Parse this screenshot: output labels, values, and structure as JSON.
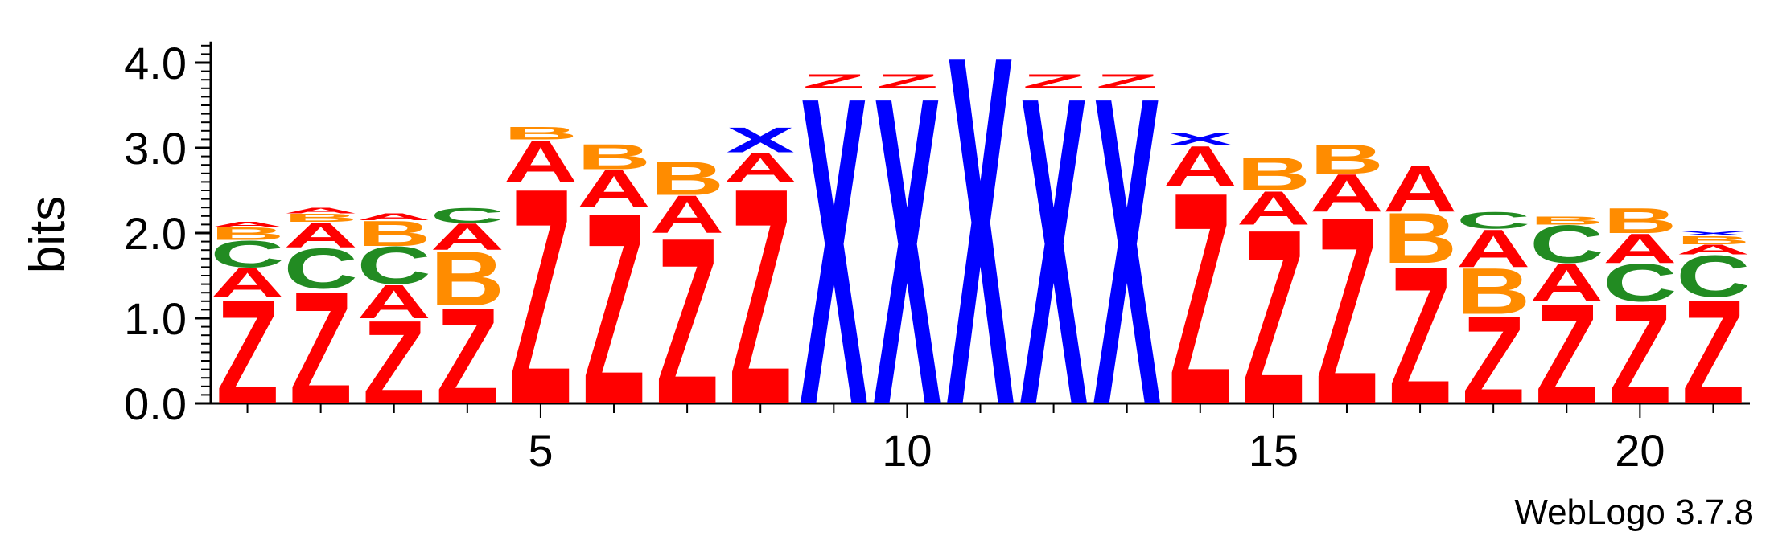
{
  "chart_data": {
    "type": "sequence-logo",
    "ylabel": "bits",
    "ylim": [
      0,
      4.2
    ],
    "yticks": [
      "0.0",
      "1.0",
      "2.0",
      "3.0",
      "4.0"
    ],
    "xticks": [
      5,
      10,
      15,
      20
    ],
    "footer": "WebLogo 3.7.8",
    "colors": {
      "Z": "#ff0000",
      "A": "#ff0000",
      "X": "#0000ff",
      "C": "#228b22",
      "B": "#ff8c00",
      "other": "#800080"
    },
    "positions": [
      {
        "pos": 1,
        "stack": [
          {
            "l": "Z",
            "h": 1.25
          },
          {
            "l": "A",
            "h": 0.35
          },
          {
            "l": "C",
            "h": 0.32
          },
          {
            "l": "B",
            "h": 0.15
          },
          {
            "l": "A",
            "h": 0.06
          }
        ]
      },
      {
        "pos": 2,
        "stack": [
          {
            "l": "Z",
            "h": 1.35
          },
          {
            "l": "C",
            "h": 0.48
          },
          {
            "l": "A",
            "h": 0.3
          },
          {
            "l": "B",
            "h": 0.1
          },
          {
            "l": "A",
            "h": 0.07
          }
        ]
      },
      {
        "pos": 3,
        "stack": [
          {
            "l": "Z",
            "h": 1.0
          },
          {
            "l": "A",
            "h": 0.4
          },
          {
            "l": "C",
            "h": 0.45
          },
          {
            "l": "B",
            "h": 0.3
          },
          {
            "l": "A",
            "h": 0.08
          }
        ]
      },
      {
        "pos": 4,
        "stack": [
          {
            "l": "Z",
            "h": 1.15
          },
          {
            "l": "B",
            "h": 0.65
          },
          {
            "l": "A",
            "h": 0.32
          },
          {
            "l": "C",
            "h": 0.18
          }
        ]
      },
      {
        "pos": 5,
        "stack": [
          {
            "l": "Z",
            "h": 2.6
          },
          {
            "l": "A",
            "h": 0.5
          },
          {
            "l": "B",
            "h": 0.15
          }
        ]
      },
      {
        "pos": 6,
        "stack": [
          {
            "l": "Z",
            "h": 2.3
          },
          {
            "l": "A",
            "h": 0.45
          },
          {
            "l": "B",
            "h": 0.3
          }
        ]
      },
      {
        "pos": 7,
        "stack": [
          {
            "l": "Z",
            "h": 2.0
          },
          {
            "l": "A",
            "h": 0.45
          },
          {
            "l": "B",
            "h": 0.4
          }
        ]
      },
      {
        "pos": 8,
        "stack": [
          {
            "l": "Z",
            "h": 2.6
          },
          {
            "l": "A",
            "h": 0.35
          },
          {
            "l": "X",
            "h": 0.3
          }
        ]
      },
      {
        "pos": 9,
        "stack": [
          {
            "l": "X",
            "h": 3.7
          },
          {
            "l": "Z",
            "h": 0.17
          }
        ]
      },
      {
        "pos": 10,
        "stack": [
          {
            "l": "X",
            "h": 3.7
          },
          {
            "l": "Z",
            "h": 0.17
          }
        ]
      },
      {
        "pos": 11,
        "stack": [
          {
            "l": "X",
            "h": 4.2
          }
        ]
      },
      {
        "pos": 12,
        "stack": [
          {
            "l": "X",
            "h": 3.7
          },
          {
            "l": "Z",
            "h": 0.17
          }
        ]
      },
      {
        "pos": 13,
        "stack": [
          {
            "l": "X",
            "h": 3.7
          },
          {
            "l": "Z",
            "h": 0.17
          }
        ]
      },
      {
        "pos": 14,
        "stack": [
          {
            "l": "Z",
            "h": 2.55
          },
          {
            "l": "A",
            "h": 0.48
          },
          {
            "l": "X",
            "h": 0.15
          }
        ]
      },
      {
        "pos": 15,
        "stack": [
          {
            "l": "Z",
            "h": 2.1
          },
          {
            "l": "A",
            "h": 0.4
          },
          {
            "l": "B",
            "h": 0.4
          }
        ]
      },
      {
        "pos": 16,
        "stack": [
          {
            "l": "Z",
            "h": 2.25
          },
          {
            "l": "A",
            "h": 0.45
          },
          {
            "l": "B",
            "h": 0.35
          }
        ]
      },
      {
        "pos": 17,
        "stack": [
          {
            "l": "Z",
            "h": 1.65
          },
          {
            "l": "B",
            "h": 0.6
          },
          {
            "l": "A",
            "h": 0.55
          }
        ]
      },
      {
        "pos": 18,
        "stack": [
          {
            "l": "Z",
            "h": 1.05
          },
          {
            "l": "B",
            "h": 0.55
          },
          {
            "l": "A",
            "h": 0.45
          },
          {
            "l": "C",
            "h": 0.2
          }
        ]
      },
      {
        "pos": 19,
        "stack": [
          {
            "l": "Z",
            "h": 1.2
          },
          {
            "l": "A",
            "h": 0.45
          },
          {
            "l": "C",
            "h": 0.45
          },
          {
            "l": "B",
            "h": 0.1
          }
        ]
      },
      {
        "pos": 20,
        "stack": [
          {
            "l": "Z",
            "h": 1.2
          },
          {
            "l": "C",
            "h": 0.45
          },
          {
            "l": "A",
            "h": 0.35
          },
          {
            "l": "B",
            "h": 0.3
          }
        ]
      },
      {
        "pos": 21,
        "stack": [
          {
            "l": "Z",
            "h": 1.25
          },
          {
            "l": "C",
            "h": 0.5
          },
          {
            "l": "A",
            "h": 0.12
          },
          {
            "l": "B",
            "h": 0.1
          },
          {
            "l": "X",
            "h": 0.05
          }
        ]
      }
    ]
  }
}
